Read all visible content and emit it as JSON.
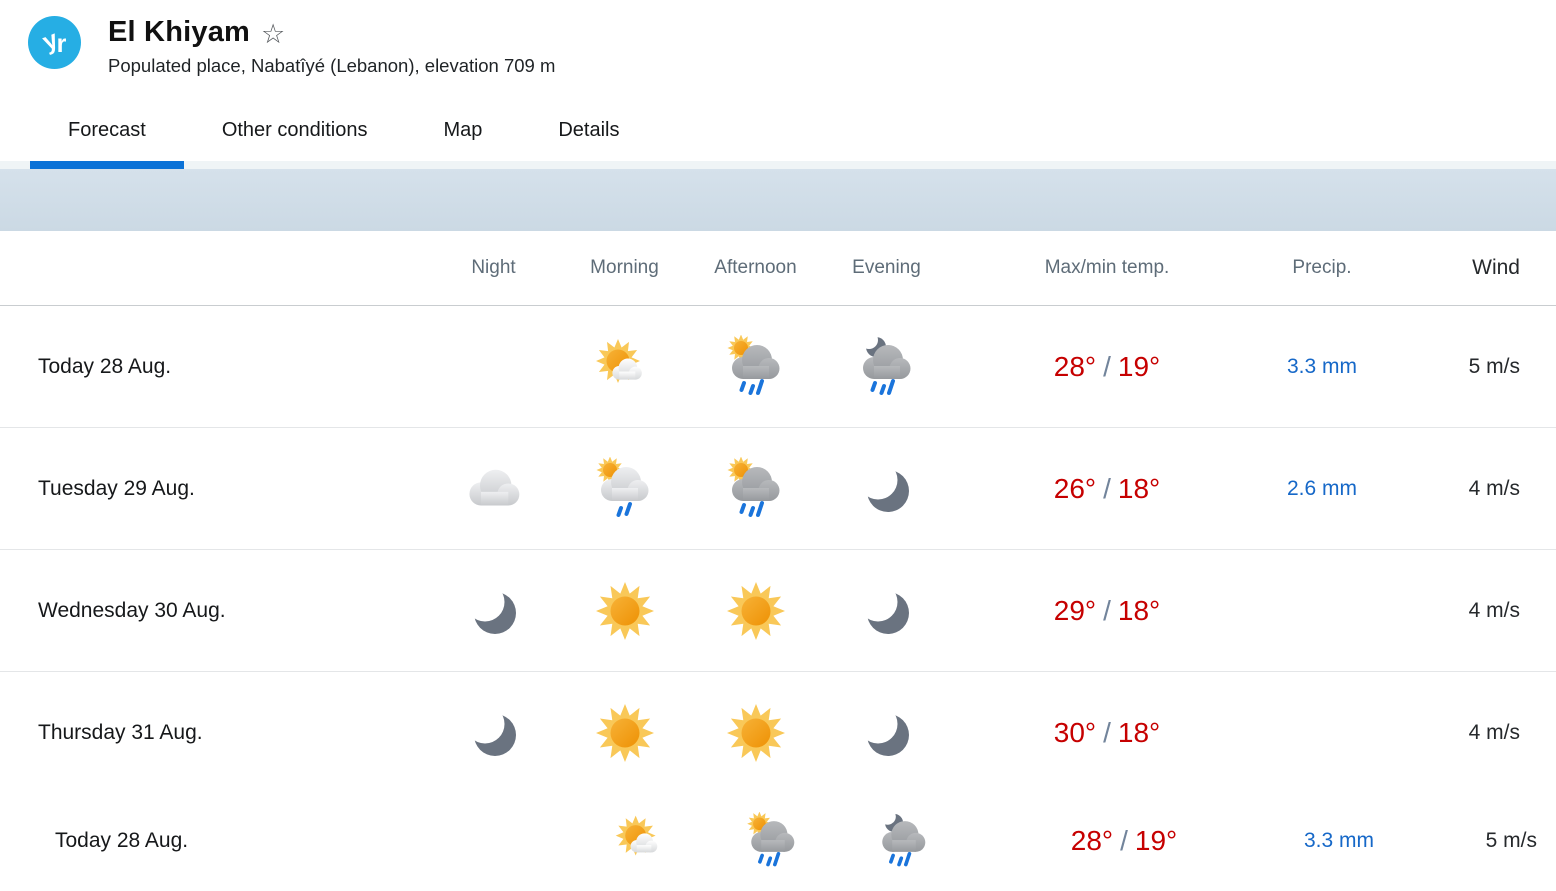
{
  "header": {
    "logo_text": "yr",
    "title": "El Khiyam",
    "star_icon": "☆",
    "subtitle": "Populated place, Nabatîyé (Lebanon), elevation 709 m"
  },
  "tabs": [
    {
      "label": "Forecast",
      "active": true
    },
    {
      "label": "Other conditions",
      "active": false
    },
    {
      "label": "Map",
      "active": false
    },
    {
      "label": "Details",
      "active": false
    }
  ],
  "table": {
    "columns": [
      "Night",
      "Morning",
      "Afternoon",
      "Evening",
      "Max/min temp.",
      "Precip.",
      "Wind"
    ],
    "rows": [
      {
        "day": "Today 28 Aug.",
        "night": "",
        "morning": "fair-day",
        "afternoon": "rain-showers-day",
        "evening": "rain-showers-night",
        "max": "28°",
        "min": "19°",
        "precip": "3.3 mm",
        "wind": "5 m/s"
      },
      {
        "day": "Tuesday 29 Aug.",
        "night": "cloudy",
        "morning": "light-rain-showers-day",
        "afternoon": "rain-showers-day",
        "evening": "clear-night",
        "max": "26°",
        "min": "18°",
        "precip": "2.6 mm",
        "wind": "4 m/s"
      },
      {
        "day": "Wednesday 30 Aug.",
        "night": "clear-night",
        "morning": "clear-day",
        "afternoon": "clear-day",
        "evening": "clear-night",
        "max": "29°",
        "min": "18°",
        "precip": "",
        "wind": "4 m/s"
      },
      {
        "day": "Thursday 31 Aug.",
        "night": "clear-night",
        "morning": "clear-day",
        "afternoon": "clear-day",
        "evening": "clear-night",
        "max": "30°",
        "min": "18°",
        "precip": "",
        "wind": "4 m/s"
      }
    ],
    "sticky_row": {
      "day": "Today 28 Aug.",
      "night": "",
      "morning": "fair-day",
      "afternoon": "rain-showers-day",
      "evening": "rain-showers-night",
      "max": "28°",
      "min": "19°",
      "precip": "3.3 mm",
      "wind": "5 m/s"
    }
  },
  "colors": {
    "brand": "#26AEE4",
    "accent": "#0B72D7",
    "temp": "#C60000",
    "precip": "#1668C8"
  }
}
